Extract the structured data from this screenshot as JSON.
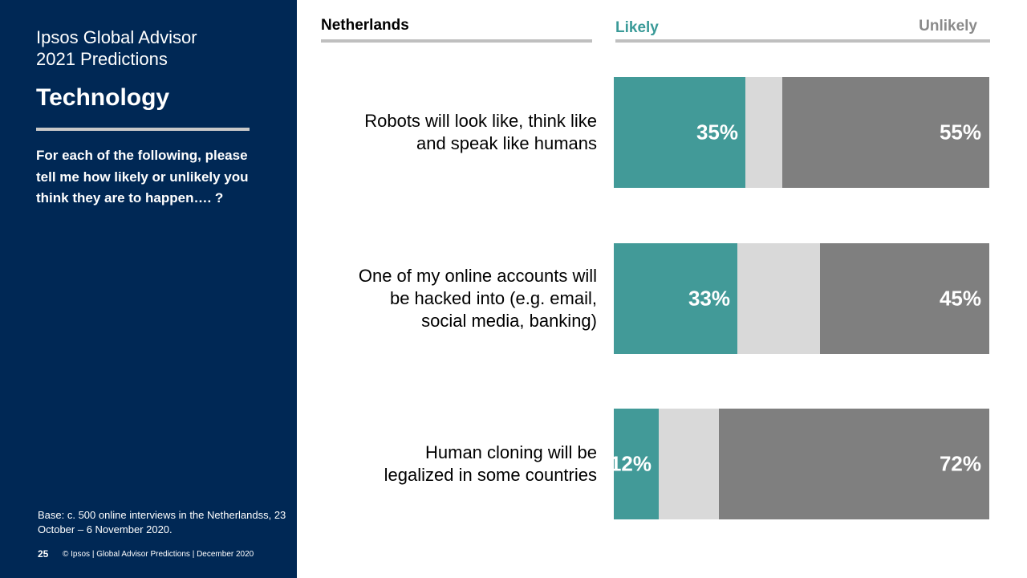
{
  "sidebar": {
    "brand_line1": "Ipsos Global Advisor",
    "brand_line2": "2021 Predictions",
    "section_title": "Technology",
    "question": "For each of the following, please tell me how likely or unlikely you think they are to happen…. ?",
    "base_note": "Base: c. 500 online interviews in the Netherlandss,  23 October – 6 November 2020.",
    "page_number": "25",
    "footer": "© Ipsos | Global Advisor Predictions | December 2020"
  },
  "colors": {
    "sidebar_bg": "#002855",
    "likely": "#429a98",
    "neutral": "#d9d9d9",
    "unlikely": "#7f7f7f"
  },
  "chart_data": {
    "type": "bar",
    "orientation": "horizontal-stacked",
    "title": "Netherlands",
    "legend": [
      "Likely",
      "Unlikely"
    ],
    "categories": [
      [
        "Robots will look like, think like",
        "and speak like humans"
      ],
      [
        "One of my online accounts will",
        "be hacked into (e.g. email,",
        "social media, banking)"
      ],
      [
        "Human cloning will be",
        "legalized in some countries"
      ]
    ],
    "series": [
      {
        "name": "Likely",
        "values": [
          35,
          33,
          12
        ],
        "labels": [
          "35%",
          "33%",
          "12%"
        ]
      },
      {
        "name": "Unlikely",
        "values": [
          55,
          45,
          72
        ],
        "labels": [
          "55%",
          "45%",
          "72%"
        ]
      }
    ],
    "xlim": [
      0,
      100
    ]
  }
}
